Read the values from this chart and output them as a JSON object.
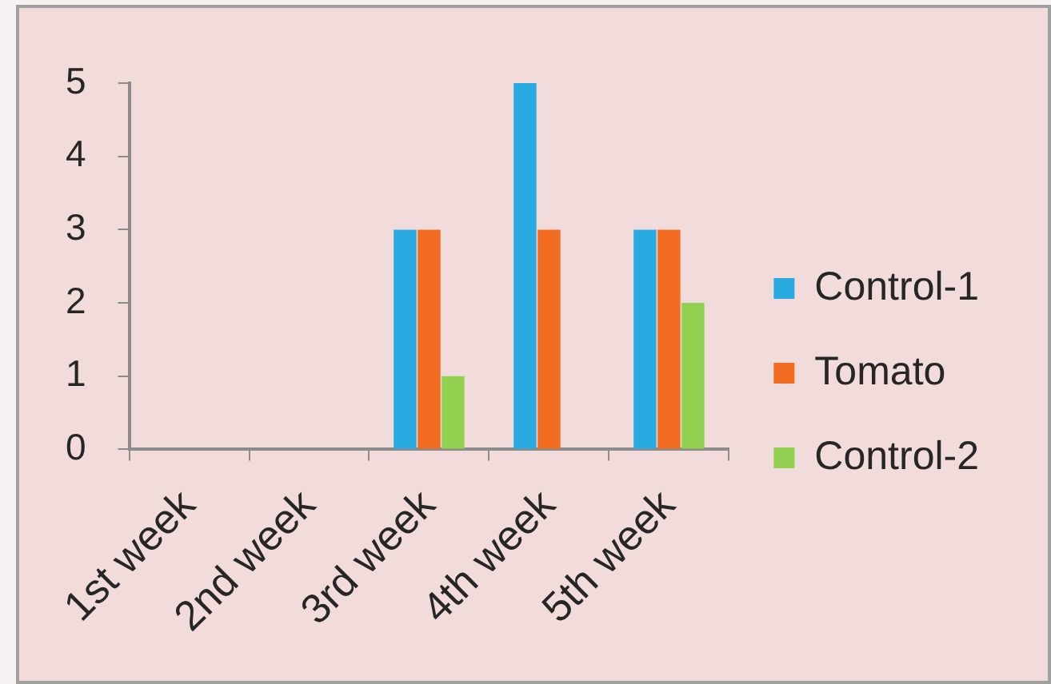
{
  "chart_data": {
    "type": "bar",
    "categories": [
      "1st week",
      "2nd week",
      "3rd week",
      "4th week",
      "5th week"
    ],
    "series": [
      {
        "name": "Control-1",
        "color": "#29abe2",
        "values": [
          0,
          0,
          3,
          5,
          3
        ]
      },
      {
        "name": "Tomato",
        "color": "#f26c21",
        "values": [
          0,
          0,
          3,
          3,
          3
        ]
      },
      {
        "name": "Control-2",
        "color": "#92d050",
        "values": [
          0,
          0,
          1,
          0,
          2
        ]
      }
    ],
    "ylim": [
      0,
      5
    ],
    "yticks": [
      0,
      1,
      2,
      3,
      4,
      5
    ],
    "grid": false,
    "legend": "right"
  }
}
